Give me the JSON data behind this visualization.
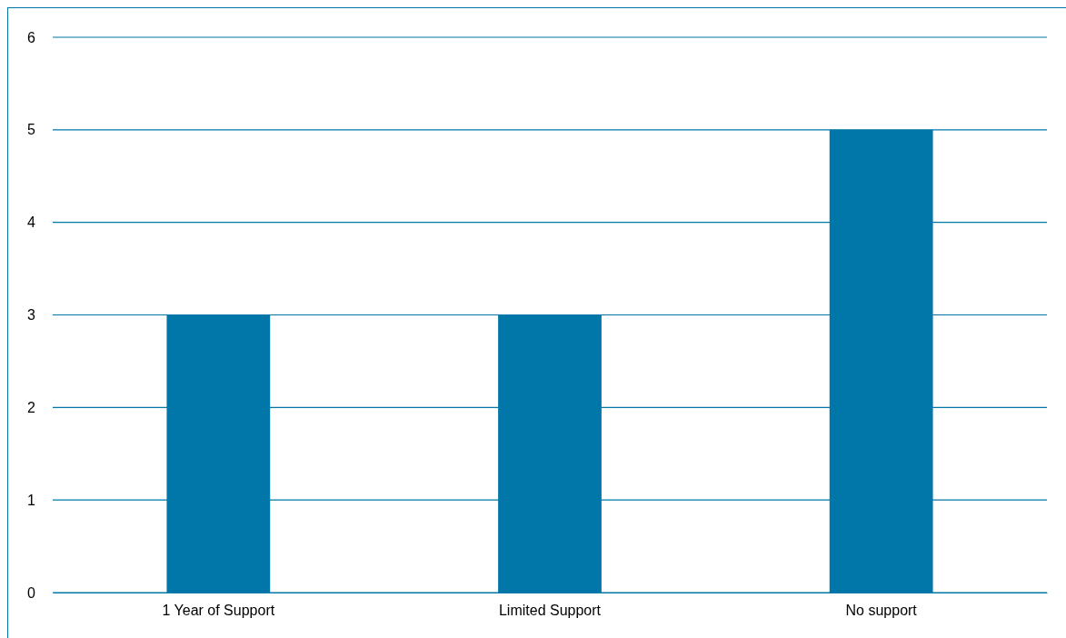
{
  "chart_data": {
    "type": "bar",
    "categories": [
      "1 Year of Support",
      "Limited Support",
      "No support"
    ],
    "values": [
      3,
      3,
      5
    ],
    "color": "#0077a8",
    "ylim": [
      0,
      6
    ],
    "yticks": [
      0,
      1,
      2,
      3,
      4,
      5,
      6
    ],
    "grid": "y"
  }
}
